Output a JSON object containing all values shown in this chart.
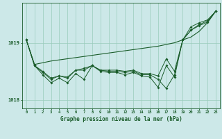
{
  "title": "Graphe pression niveau de la mer (hPa)",
  "bg_color": "#cce8e8",
  "grid_color": "#99ccbb",
  "line_color": "#1a5c2a",
  "xlim": [
    -0.5,
    23.5
  ],
  "ylim": [
    1017.85,
    1019.7
  ],
  "yticks": [
    1018,
    1019
  ],
  "xticks": [
    0,
    1,
    2,
    3,
    4,
    5,
    6,
    7,
    8,
    9,
    10,
    11,
    12,
    13,
    14,
    15,
    16,
    17,
    18,
    19,
    20,
    21,
    22,
    23
  ],
  "hours": [
    0,
    1,
    2,
    3,
    4,
    5,
    6,
    7,
    8,
    9,
    10,
    11,
    12,
    13,
    14,
    15,
    16,
    17,
    18,
    19,
    20,
    21,
    22,
    23
  ],
  "series_straight": [
    1019.05,
    1018.62,
    1018.65,
    1018.68,
    1018.7,
    1018.72,
    1018.74,
    1018.76,
    1018.78,
    1018.8,
    1018.82,
    1018.84,
    1018.86,
    1018.88,
    1018.9,
    1018.92,
    1018.94,
    1018.97,
    1019.0,
    1019.05,
    1019.1,
    1019.2,
    1019.35,
    1019.55
  ],
  "series_a": [
    1019.05,
    1018.6,
    1018.5,
    1018.38,
    1018.42,
    1018.4,
    1018.52,
    1018.55,
    1018.6,
    1018.52,
    1018.52,
    1018.52,
    1018.5,
    1018.52,
    1018.46,
    1018.46,
    1018.42,
    1018.72,
    1018.5,
    1019.05,
    1019.28,
    1019.35,
    1019.4,
    1019.55
  ],
  "series_b": [
    1019.05,
    1018.6,
    1018.48,
    1018.36,
    1018.42,
    1018.38,
    1018.52,
    1018.52,
    1018.6,
    1018.52,
    1018.5,
    1018.5,
    1018.48,
    1018.5,
    1018.44,
    1018.44,
    1018.36,
    1018.2,
    1018.44,
    1019.05,
    1019.22,
    1019.32,
    1019.38,
    1019.55
  ],
  "series_main": [
    1019.05,
    1018.6,
    1018.44,
    1018.3,
    1018.38,
    1018.3,
    1018.46,
    1018.36,
    1018.6,
    1018.5,
    1018.48,
    1018.48,
    1018.44,
    1018.48,
    1018.42,
    1018.4,
    1018.22,
    1018.6,
    1018.4,
    1019.05,
    1019.22,
    1019.3,
    1019.36,
    1019.55
  ]
}
